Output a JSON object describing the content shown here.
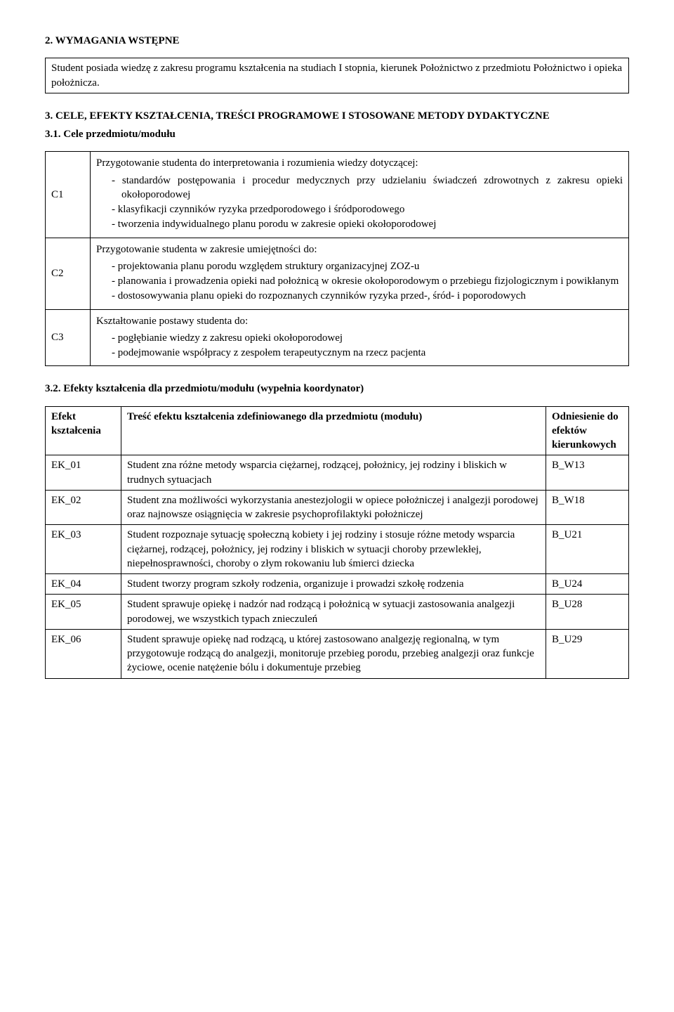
{
  "section2": {
    "heading": "2. WYMAGANIA WSTĘPNE",
    "box_text": "Student posiada wiedzę z zakresu programu kształcenia na studiach I stopnia, kierunek Położnictwo z przedmiotu Położnictwo i opieka położnicza."
  },
  "section3": {
    "heading": "3. CELE, EFEKTY KSZTAŁCENIA, TREŚCI PROGRAMOWE I STOSOWANE METODY DYDAKTYCZNE"
  },
  "section3_1": {
    "heading": "3.1. Cele przedmiotu/modułu",
    "rows": [
      {
        "code": "C1",
        "intro": "Przygotowanie studenta do interpretowania i rozumienia wiedzy dotyczącej:",
        "items": [
          "standardów postępowania i procedur medycznych przy udzielaniu świadczeń zdrowotnych z zakresu opieki okołoporodowej",
          "klasyfikacji czynników ryzyka przedporodowego i śródporodowego",
          "tworzenia indywidualnego planu porodu w zakresie opieki okołoporodowej"
        ]
      },
      {
        "code": "C2",
        "intro": "Przygotowanie studenta w zakresie umiejętności do:",
        "items": [
          "projektowania planu porodu względem struktury organizacyjnej ZOZ-u",
          "planowania i prowadzenia opieki nad położnicą w okresie okołoporodowym o przebiegu fizjologicznym i powikłanym",
          "dostosowywania planu opieki do rozpoznanych czynników ryzyka przed-, śród- i poporodowych"
        ]
      },
      {
        "code": "C3",
        "intro": "Kształtowanie postawy studenta do:",
        "items": [
          "pogłębianie wiedzy z zakresu opieki okołoporodowej",
          "podejmowanie współpracy z  zespołem terapeutycznym na rzecz pacjenta"
        ]
      }
    ]
  },
  "section3_2": {
    "heading": "3.2. Efekty kształcenia dla przedmiotu/modułu (wypełnia koordynator)",
    "header": {
      "col1": "Efekt kształcenia",
      "col2": "Treść efektu kształcenia zdefiniowanego dla przedmiotu (modułu)",
      "col3": "Odniesienie do efektów kierunkowych"
    },
    "rows": [
      {
        "code": "EK_01",
        "text": "Student zna różne metody wsparcia ciężarnej, rodzącej, położnicy, jej rodziny i bliskich w trudnych sytuacjach",
        "ref": "B_W13"
      },
      {
        "code": "EK_02",
        "text": "Student zna możliwości wykorzystania anestezjologii w opiece położniczej i analgezji porodowej oraz najnowsze osiągnięcia w zakresie psychoprofilaktyki położniczej",
        "ref": "B_W18"
      },
      {
        "code": "EK_03",
        "text": "Student rozpoznaje sytuację społeczną kobiety i jej rodziny i stosuje różne metody wsparcia ciężarnej, rodzącej, położnicy, jej rodziny i bliskich w sytuacji choroby przewlekłej, niepełnosprawności, choroby o złym rokowaniu lub śmierci dziecka",
        "ref": "B_U21"
      },
      {
        "code": "EK_04",
        "text": "Student tworzy program szkoły rodzenia, organizuje i prowadzi szkołę rodzenia",
        "ref": "B_U24"
      },
      {
        "code": "EK_05",
        "text": "Student sprawuje opiekę i nadzór nad rodzącą i położnicą w sytuacji zastosowania analgezji porodowej, we wszystkich typach znieczuleń",
        "ref": "B_U28"
      },
      {
        "code": "EK_06",
        "text": "Student sprawuje opiekę nad rodzącą, u której zastosowano analgezję regionalną, w tym przygotowuje rodzącą do analgezji, monitoruje przebieg porodu, przebieg analgezji oraz funkcje życiowe, ocenie natężenie bólu i dokumentuje przebieg",
        "ref": "B_U29"
      }
    ]
  }
}
